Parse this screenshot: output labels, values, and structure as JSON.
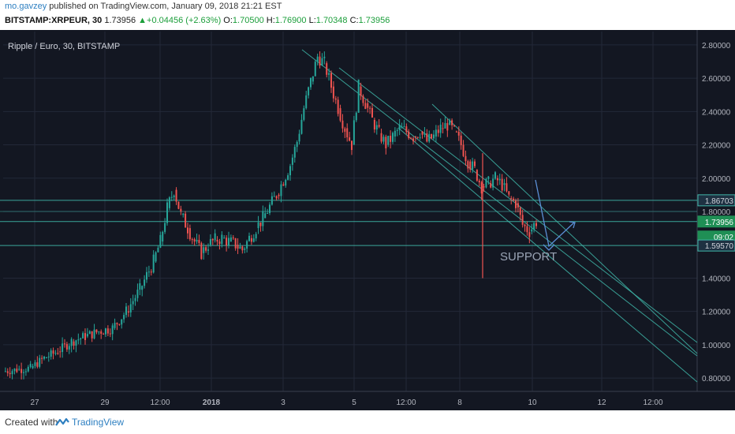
{
  "header": {
    "user": "mo.gavzey",
    "published_text": "published on TradingView.com, January 09, 2018 21:21 EST",
    "symbol_line": "BITSTAMP:XRPEUR, 30",
    "last": "1.73956",
    "change": "+0.04456 (+2.63%)",
    "o_label": "O:",
    "o_value": "1.70500",
    "h_label": "H:",
    "h_value": "1.76900",
    "l_label": "L:",
    "l_value": "1.70348",
    "c_label": "C:",
    "c_value": "1.73956"
  },
  "footer": {
    "created_with": "Created with",
    "brand": "TradingView"
  },
  "colors": {
    "background": "#131722",
    "grid": "#232838",
    "up": "#26a69a",
    "down": "#ef5350",
    "level_line": "#3fb6a8",
    "channel": "#3fb6a8",
    "support_text": "#9aa4b5",
    "arrow": "#5b8fd6"
  },
  "chart_data": {
    "type": "candlestick",
    "title": "Ripple / Euro, 30, BITSTAMP",
    "symbol": "XRPEUR",
    "y_ticks": [
      "2.80000",
      "2.60000",
      "2.40000",
      "2.20000",
      "2.00000",
      "1.80000",
      "1.40000",
      "1.20000",
      "1.00000",
      "0.80000"
    ],
    "y_tick_values": [
      2.8,
      2.6,
      2.4,
      2.2,
      2.0,
      1.8,
      1.4,
      1.2,
      1.0,
      0.8
    ],
    "x_ticks": [
      "27",
      "29",
      "12:00",
      "2018",
      "3",
      "5",
      "12:00",
      "8",
      "10",
      "12",
      "12:00"
    ],
    "x_tick_days": [
      27,
      29,
      29.5,
      1,
      3,
      5,
      5.5,
      8,
      10,
      12,
      12.5
    ],
    "ylim": [
      0.72,
      2.88
    ],
    "price_labels": [
      {
        "name": "resistance",
        "value": "1.86703"
      },
      {
        "name": "last-price",
        "value": "1.73956"
      },
      {
        "name": "countdown",
        "value": "09:02"
      },
      {
        "name": "support",
        "value": "1.59570"
      }
    ],
    "level_values": {
      "resistance": 1.86703,
      "mid": 1.8,
      "last": 1.73956,
      "support": 1.5957
    },
    "annotation": "SUPPORT",
    "price_path": [
      [
        0,
        0.84
      ],
      [
        2,
        0.85
      ],
      [
        4,
        0.86
      ],
      [
        6,
        0.92
      ],
      [
        8,
        0.96
      ],
      [
        10,
        1.02
      ],
      [
        12,
        1.05
      ],
      [
        14,
        1.08
      ],
      [
        16,
        1.1
      ],
      [
        18,
        1.2
      ],
      [
        20,
        1.33
      ],
      [
        22,
        1.5
      ],
      [
        23,
        1.62
      ],
      [
        24,
        1.82
      ],
      [
        25,
        1.93
      ],
      [
        26,
        1.78
      ],
      [
        27,
        1.7
      ],
      [
        28,
        1.62
      ],
      [
        29,
        1.55
      ],
      [
        30,
        1.6
      ],
      [
        31,
        1.63
      ],
      [
        32,
        1.64
      ],
      [
        33,
        1.62
      ],
      [
        34,
        1.6
      ],
      [
        35,
        1.57
      ],
      [
        36,
        1.64
      ],
      [
        37,
        1.7
      ],
      [
        38,
        1.76
      ],
      [
        40,
        1.9
      ],
      [
        42,
        2.08
      ],
      [
        43,
        2.22
      ],
      [
        44,
        2.42
      ],
      [
        45,
        2.58
      ],
      [
        46,
        2.73
      ],
      [
        47,
        2.69
      ],
      [
        48,
        2.55
      ],
      [
        49,
        2.42
      ],
      [
        50,
        2.3
      ],
      [
        51,
        2.2
      ],
      [
        52,
        2.55
      ],
      [
        53,
        2.45
      ],
      [
        54,
        2.35
      ],
      [
        55,
        2.27
      ],
      [
        56,
        2.2
      ],
      [
        57,
        2.25
      ],
      [
        58,
        2.3
      ],
      [
        59,
        2.28
      ],
      [
        60,
        2.25
      ],
      [
        61,
        2.28
      ],
      [
        62,
        2.22
      ],
      [
        63,
        2.25
      ],
      [
        64,
        2.3
      ],
      [
        65,
        2.32
      ],
      [
        66,
        2.28
      ],
      [
        67,
        2.2
      ],
      [
        68,
        2.1
      ],
      [
        69,
        2.05
      ],
      [
        70,
        1.95
      ],
      [
        71,
        1.97
      ],
      [
        72,
        2.0
      ],
      [
        73,
        1.96
      ],
      [
        74,
        1.88
      ],
      [
        75,
        1.85
      ],
      [
        76,
        1.72
      ],
      [
        77,
        1.68
      ],
      [
        78,
        1.74
      ]
    ],
    "spike_wicks": [
      {
        "x": 4,
        "low": 1.6,
        "high": 1.6
      },
      {
        "x": 68,
        "low": 1.4,
        "high": 2.15
      }
    ]
  }
}
